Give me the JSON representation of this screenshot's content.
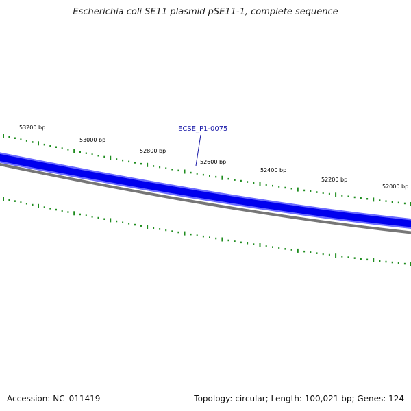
{
  "title": "Escherichia coli SE11 plasmid pSE11-1, complete sequence",
  "footer": {
    "accession": "Accession: NC_011419",
    "summary": "Topology: circular; Length: 100,021 bp; Genes: 124"
  },
  "map": {
    "tick_labels": [
      "53200 bp",
      "53000 bp",
      "52800 bp",
      "52600 bp",
      "52400 bp",
      "52200 bp",
      "52000 bp"
    ],
    "gene_label": "ECSE_P1-0075",
    "colors": {
      "gene_band": "#0000ee",
      "gene_band_edge": "#6a6aff",
      "backbone": "#777777",
      "ticks": "#1e8c1e",
      "gene_label": "#1a1aa8"
    }
  }
}
